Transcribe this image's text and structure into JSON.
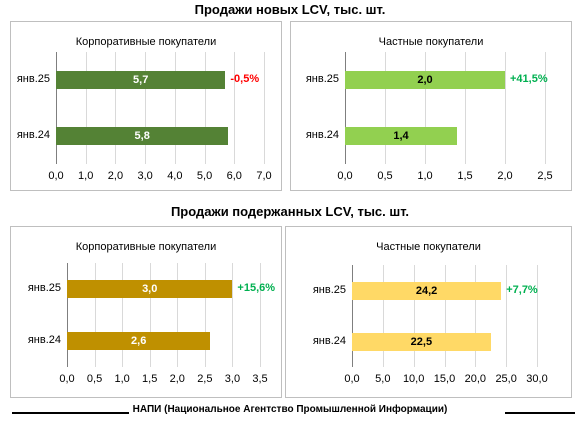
{
  "chart_data": [
    {
      "type": "bar",
      "section_title": "Продажи новых LCV, тыс. шт.",
      "title": "Корпоративные покупатели",
      "categories": [
        "янв.25",
        "янв.24"
      ],
      "values": [
        5.7,
        5.8
      ],
      "value_labels": [
        "5,7",
        "5,8"
      ],
      "change_label": "-0,5%",
      "change_color": "#ff0000",
      "bar_color": "#548235",
      "bar_text_color": "#ffffff",
      "xlim": [
        0,
        7
      ],
      "xticks": [
        "0,0",
        "1,0",
        "2,0",
        "3,0",
        "4,0",
        "5,0",
        "6,0",
        "7,0"
      ]
    },
    {
      "type": "bar",
      "title": "Частные покупатели",
      "categories": [
        "янв.25",
        "янв.24"
      ],
      "values": [
        2.0,
        1.4
      ],
      "value_labels": [
        "2,0",
        "1,4"
      ],
      "change_label": "+41,5%",
      "change_color": "#00b050",
      "bar_color": "#92d050",
      "bar_text_color": "#000000",
      "xlim": [
        0,
        2.5
      ],
      "xticks": [
        "0,0",
        "0,5",
        "1,0",
        "1,5",
        "2,0",
        "2,5"
      ]
    },
    {
      "type": "bar",
      "section_title": "Продажи подержанных LCV, тыс. шт.",
      "title": "Корпоративные покупатели",
      "categories": [
        "янв.25",
        "янв.24"
      ],
      "values": [
        3.0,
        2.6
      ],
      "value_labels": [
        "3,0",
        "2,6"
      ],
      "change_label": "+15,6%",
      "change_color": "#00b050",
      "bar_color": "#bf9000",
      "bar_text_color": "#ffffff",
      "xlim": [
        0,
        3.5
      ],
      "xticks": [
        "0,0",
        "0,5",
        "1,0",
        "1,5",
        "2,0",
        "2,5",
        "3,0",
        "3,5"
      ]
    },
    {
      "type": "bar",
      "title": "Частные покупатели",
      "categories": [
        "янв.25",
        "янв.24"
      ],
      "values": [
        24.2,
        22.5
      ],
      "value_labels": [
        "24,2",
        "22,5"
      ],
      "change_label": "+7,7%",
      "change_color": "#00b050",
      "bar_color": "#ffd966",
      "bar_text_color": "#000000",
      "xlim": [
        0,
        30
      ],
      "xticks": [
        "0,0",
        "5,0",
        "10,0",
        "15,0",
        "20,0",
        "25,0",
        "30,0"
      ]
    }
  ],
  "footer": "НАПИ (Национальное Агентство Промышленной Информации)"
}
